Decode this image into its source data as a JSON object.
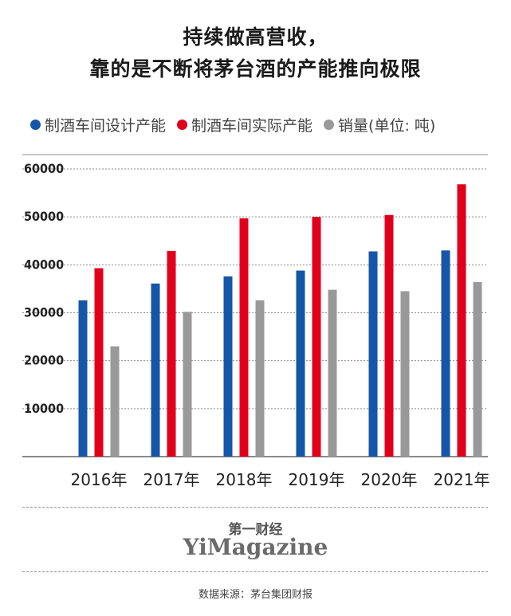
{
  "title_line1": "持续做高营收，",
  "title_line2": "靠的是不断将茅台酒的产能推向极限",
  "brand": {
    "cn": "第一财经",
    "en": "YiMagazine"
  },
  "source": "数据来源：茅台集团财报",
  "chart_data": {
    "type": "bar",
    "categories": [
      "2016年",
      "2017年",
      "2018年",
      "2019年",
      "2020年",
      "2021年"
    ],
    "series": [
      {
        "name": "制酒车间设计产能",
        "color": "#1556a8",
        "values": [
          32600,
          36100,
          37600,
          38800,
          42800,
          43000
        ]
      },
      {
        "name": "制酒车间实际产能",
        "color": "#e1001b",
        "values": [
          39300,
          42900,
          49700,
          50000,
          50400,
          56800
        ]
      },
      {
        "name": "销量(单位: 吨)",
        "color": "#999999",
        "values": [
          23000,
          30200,
          32600,
          34800,
          34500,
          36400
        ]
      }
    ],
    "yticks": [
      10000,
      20000,
      30000,
      40000,
      50000,
      60000
    ],
    "ylim": [
      0,
      60000
    ],
    "title": "",
    "xlabel": "",
    "ylabel": "",
    "grid": true,
    "legend_position": "top"
  }
}
